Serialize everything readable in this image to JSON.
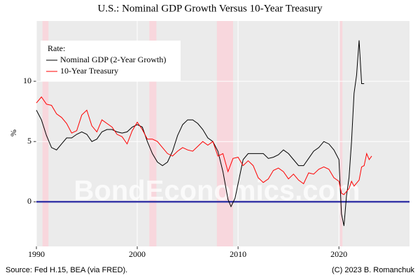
{
  "chart_data": {
    "type": "line",
    "title": "U.S.: Nominal GDP Growth Versus 10-Year Treasury",
    "ylabel": "%",
    "caption_left": "Source: Fed H.15, BEA (via FRED).",
    "caption_right": "(C) 2023 B. Romanchuk",
    "watermark": "BondEconomics.com",
    "legend_title": "Rate:",
    "legend": "top-left",
    "grid": true,
    "xlim": [
      1990,
      2027
    ],
    "ylim": [
      -3.7,
      15
    ],
    "xticks": [
      1990,
      2000,
      2010,
      2020
    ],
    "yticks": [
      0,
      5,
      10
    ],
    "hline": 0,
    "hline_color": "#3a3aa8",
    "recessions": [
      [
        1990.6,
        1991.2
      ],
      [
        2001.2,
        2001.9
      ],
      [
        2007.9,
        2009.5
      ],
      [
        2020.1,
        2020.35
      ]
    ],
    "recession_color": "#f8d7dd",
    "series": [
      {
        "name": "Nominal GDP (2-Year Growth)",
        "color": "#000000",
        "x": [
          1990,
          1990.5,
          1991,
          1991.5,
          1992,
          1992.5,
          1993,
          1993.5,
          1994,
          1994.5,
          1995,
          1995.5,
          1996,
          1996.5,
          1997,
          1997.5,
          1998,
          1998.5,
          1999,
          1999.5,
          2000,
          2000.5,
          2001,
          2001.5,
          2002,
          2002.5,
          2003,
          2003.5,
          2004,
          2004.5,
          2005,
          2005.5,
          2006,
          2006.5,
          2007,
          2007.5,
          2008,
          2008.5,
          2009,
          2009.3,
          2009.7,
          2010,
          2010.5,
          2011,
          2011.5,
          2012,
          2012.5,
          2013,
          2013.5,
          2014,
          2014.5,
          2015,
          2015.5,
          2016,
          2016.5,
          2017,
          2017.5,
          2018,
          2018.5,
          2019,
          2019.5,
          2020,
          2020.25,
          2020.5,
          2020.75,
          2021,
          2021.25,
          2021.5,
          2021.75,
          2022,
          2022.25,
          2022.5
        ],
        "values": [
          7.6,
          6.8,
          5.5,
          4.5,
          4.3,
          4.8,
          5.3,
          5.3,
          5.6,
          5.8,
          5.6,
          5.0,
          5.2,
          5.8,
          6.0,
          6.0,
          5.8,
          5.7,
          5.8,
          6.2,
          6.4,
          6.2,
          5.0,
          4.0,
          3.3,
          3.0,
          3.3,
          4.2,
          5.5,
          6.4,
          6.8,
          6.8,
          6.5,
          6.0,
          5.3,
          5.0,
          4.2,
          2.5,
          0.2,
          -0.4,
          0.3,
          1.5,
          3.5,
          4.0,
          4.0,
          4.0,
          4.0,
          3.6,
          3.7,
          3.9,
          4.3,
          4.0,
          3.5,
          3.0,
          3.0,
          3.6,
          4.2,
          4.5,
          5.0,
          4.8,
          4.3,
          3.5,
          -1.0,
          -2.0,
          0.5,
          2.0,
          5.0,
          9.0,
          10.5,
          13.4,
          9.8,
          9.8
        ]
      },
      {
        "name": "10-Year Treasury",
        "color": "#ff0000",
        "x": [
          1990,
          1990.5,
          1991,
          1991.5,
          1992,
          1992.5,
          1993,
          1993.5,
          1994,
          1994.5,
          1995,
          1995.5,
          1996,
          1996.5,
          1997,
          1997.5,
          1998,
          1998.5,
          1999,
          1999.5,
          2000,
          2000.5,
          2001,
          2001.5,
          2002,
          2002.5,
          2003,
          2003.5,
          2004,
          2004.5,
          2005,
          2005.5,
          2006,
          2006.5,
          2007,
          2007.5,
          2008,
          2008.5,
          2009,
          2009.5,
          2010,
          2010.5,
          2011,
          2011.5,
          2012,
          2012.5,
          2013,
          2013.5,
          2014,
          2014.5,
          2015,
          2015.5,
          2016,
          2016.5,
          2017,
          2017.5,
          2018,
          2018.5,
          2019,
          2019.5,
          2020,
          2020.25,
          2020.5,
          2021,
          2021.25,
          2021.5,
          2022,
          2022.25,
          2022.5,
          2022.75,
          2023,
          2023.25
        ],
        "values": [
          8.2,
          8.7,
          8.1,
          8.0,
          7.3,
          7.0,
          6.5,
          5.7,
          5.9,
          7.2,
          7.6,
          6.3,
          5.8,
          6.8,
          6.5,
          6.2,
          5.6,
          5.4,
          4.8,
          5.9,
          6.6,
          6.0,
          5.2,
          5.2,
          5.0,
          4.5,
          4.0,
          3.8,
          4.2,
          4.5,
          4.3,
          4.2,
          4.6,
          5.0,
          4.7,
          5.0,
          3.8,
          4.0,
          2.5,
          3.6,
          3.7,
          3.0,
          3.4,
          3.0,
          2.0,
          1.6,
          1.9,
          2.6,
          2.8,
          2.5,
          1.9,
          2.3,
          1.8,
          1.5,
          2.4,
          2.3,
          2.7,
          2.9,
          2.7,
          2.0,
          1.7,
          0.7,
          0.6,
          1.1,
          1.7,
          1.3,
          1.8,
          2.9,
          3.0,
          4.0,
          3.5,
          3.8
        ]
      }
    ]
  }
}
